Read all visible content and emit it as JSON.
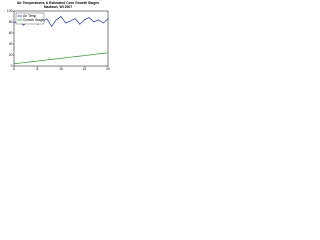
{
  "chart_data": {
    "type": "line",
    "title": "Air Temperatures & Estimated Corn Growth Stages",
    "subtitle": "Madison, WI 2007",
    "x": [
      0,
      1,
      2,
      3,
      4,
      5,
      6,
      7,
      8,
      9,
      10,
      11,
      12,
      13,
      14,
      15,
      16,
      17,
      18,
      19,
      20
    ],
    "xlim": [
      0,
      20
    ],
    "xticks": [
      0,
      5,
      10,
      15,
      20
    ],
    "ylim": [
      0,
      100
    ],
    "yticks": [
      0,
      20,
      40,
      60,
      80,
      100
    ],
    "grid": false,
    "legend": "upper-left",
    "series": [
      {
        "name": "Air Temp",
        "color": "#2030c0",
        "values": [
          78,
          84,
          74,
          82,
          88,
          76,
          80,
          86,
          72,
          84,
          90,
          78,
          82,
          86,
          76,
          84,
          88,
          80,
          84,
          78,
          86
        ]
      },
      {
        "name": "Growth Stage",
        "color": "#20a020",
        "values": [
          4,
          5,
          6,
          7,
          8,
          9,
          10,
          11,
          12,
          13,
          14,
          15,
          16,
          17,
          18,
          19,
          20,
          21,
          22,
          23,
          24
        ]
      }
    ]
  }
}
